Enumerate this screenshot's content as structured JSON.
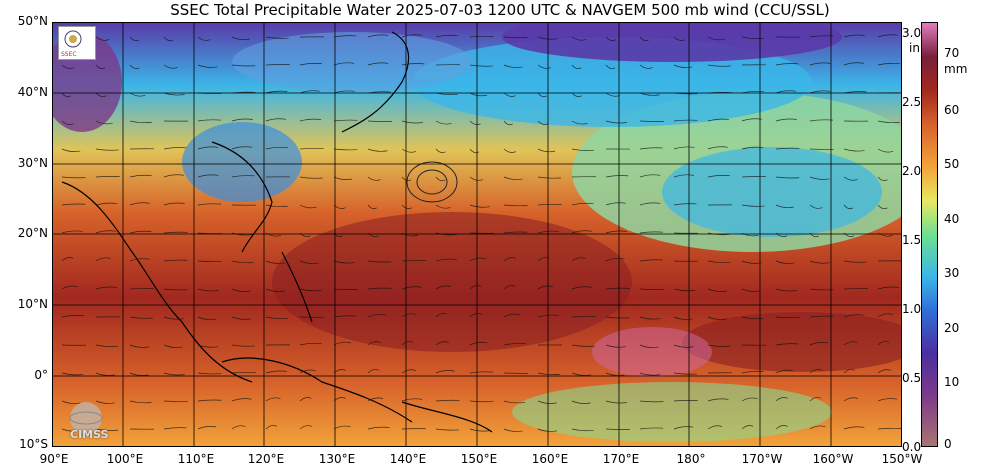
{
  "title": "SSEC Total Precipitable Water  2025-07-03 1200 UTC & NAVGEM 500 mb wind (CCU/SSL)",
  "lat_labels": [
    "50°N",
    "40°N",
    "30°N",
    "20°N",
    "10°N",
    "0°",
    "10°S"
  ],
  "lon_labels": [
    "90°E",
    "100°E",
    "110°E",
    "120°E",
    "130°E",
    "140°E",
    "150°E",
    "160°E",
    "170°E",
    "180°",
    "170°W",
    "160°W",
    "150°W"
  ],
  "colorbar": {
    "in_unit": "in",
    "mm_unit": "mm",
    "in_ticks": [
      "3.0",
      "2.5",
      "2.0",
      "1.5",
      "1.0",
      "0.5",
      "0.0"
    ],
    "mm_ticks": [
      "70",
      "60",
      "50",
      "40",
      "30",
      "20",
      "10",
      "0"
    ]
  },
  "logos": {
    "cimss": "CIMSS"
  },
  "colors": {
    "dry_purple": "#4b2fa0",
    "mid_blue": "#3bb6e8",
    "green": "#6fe08f",
    "orange": "#f2a33b",
    "moist_red": "#a1281f",
    "very_moist_pink": "#e07dbd"
  }
}
